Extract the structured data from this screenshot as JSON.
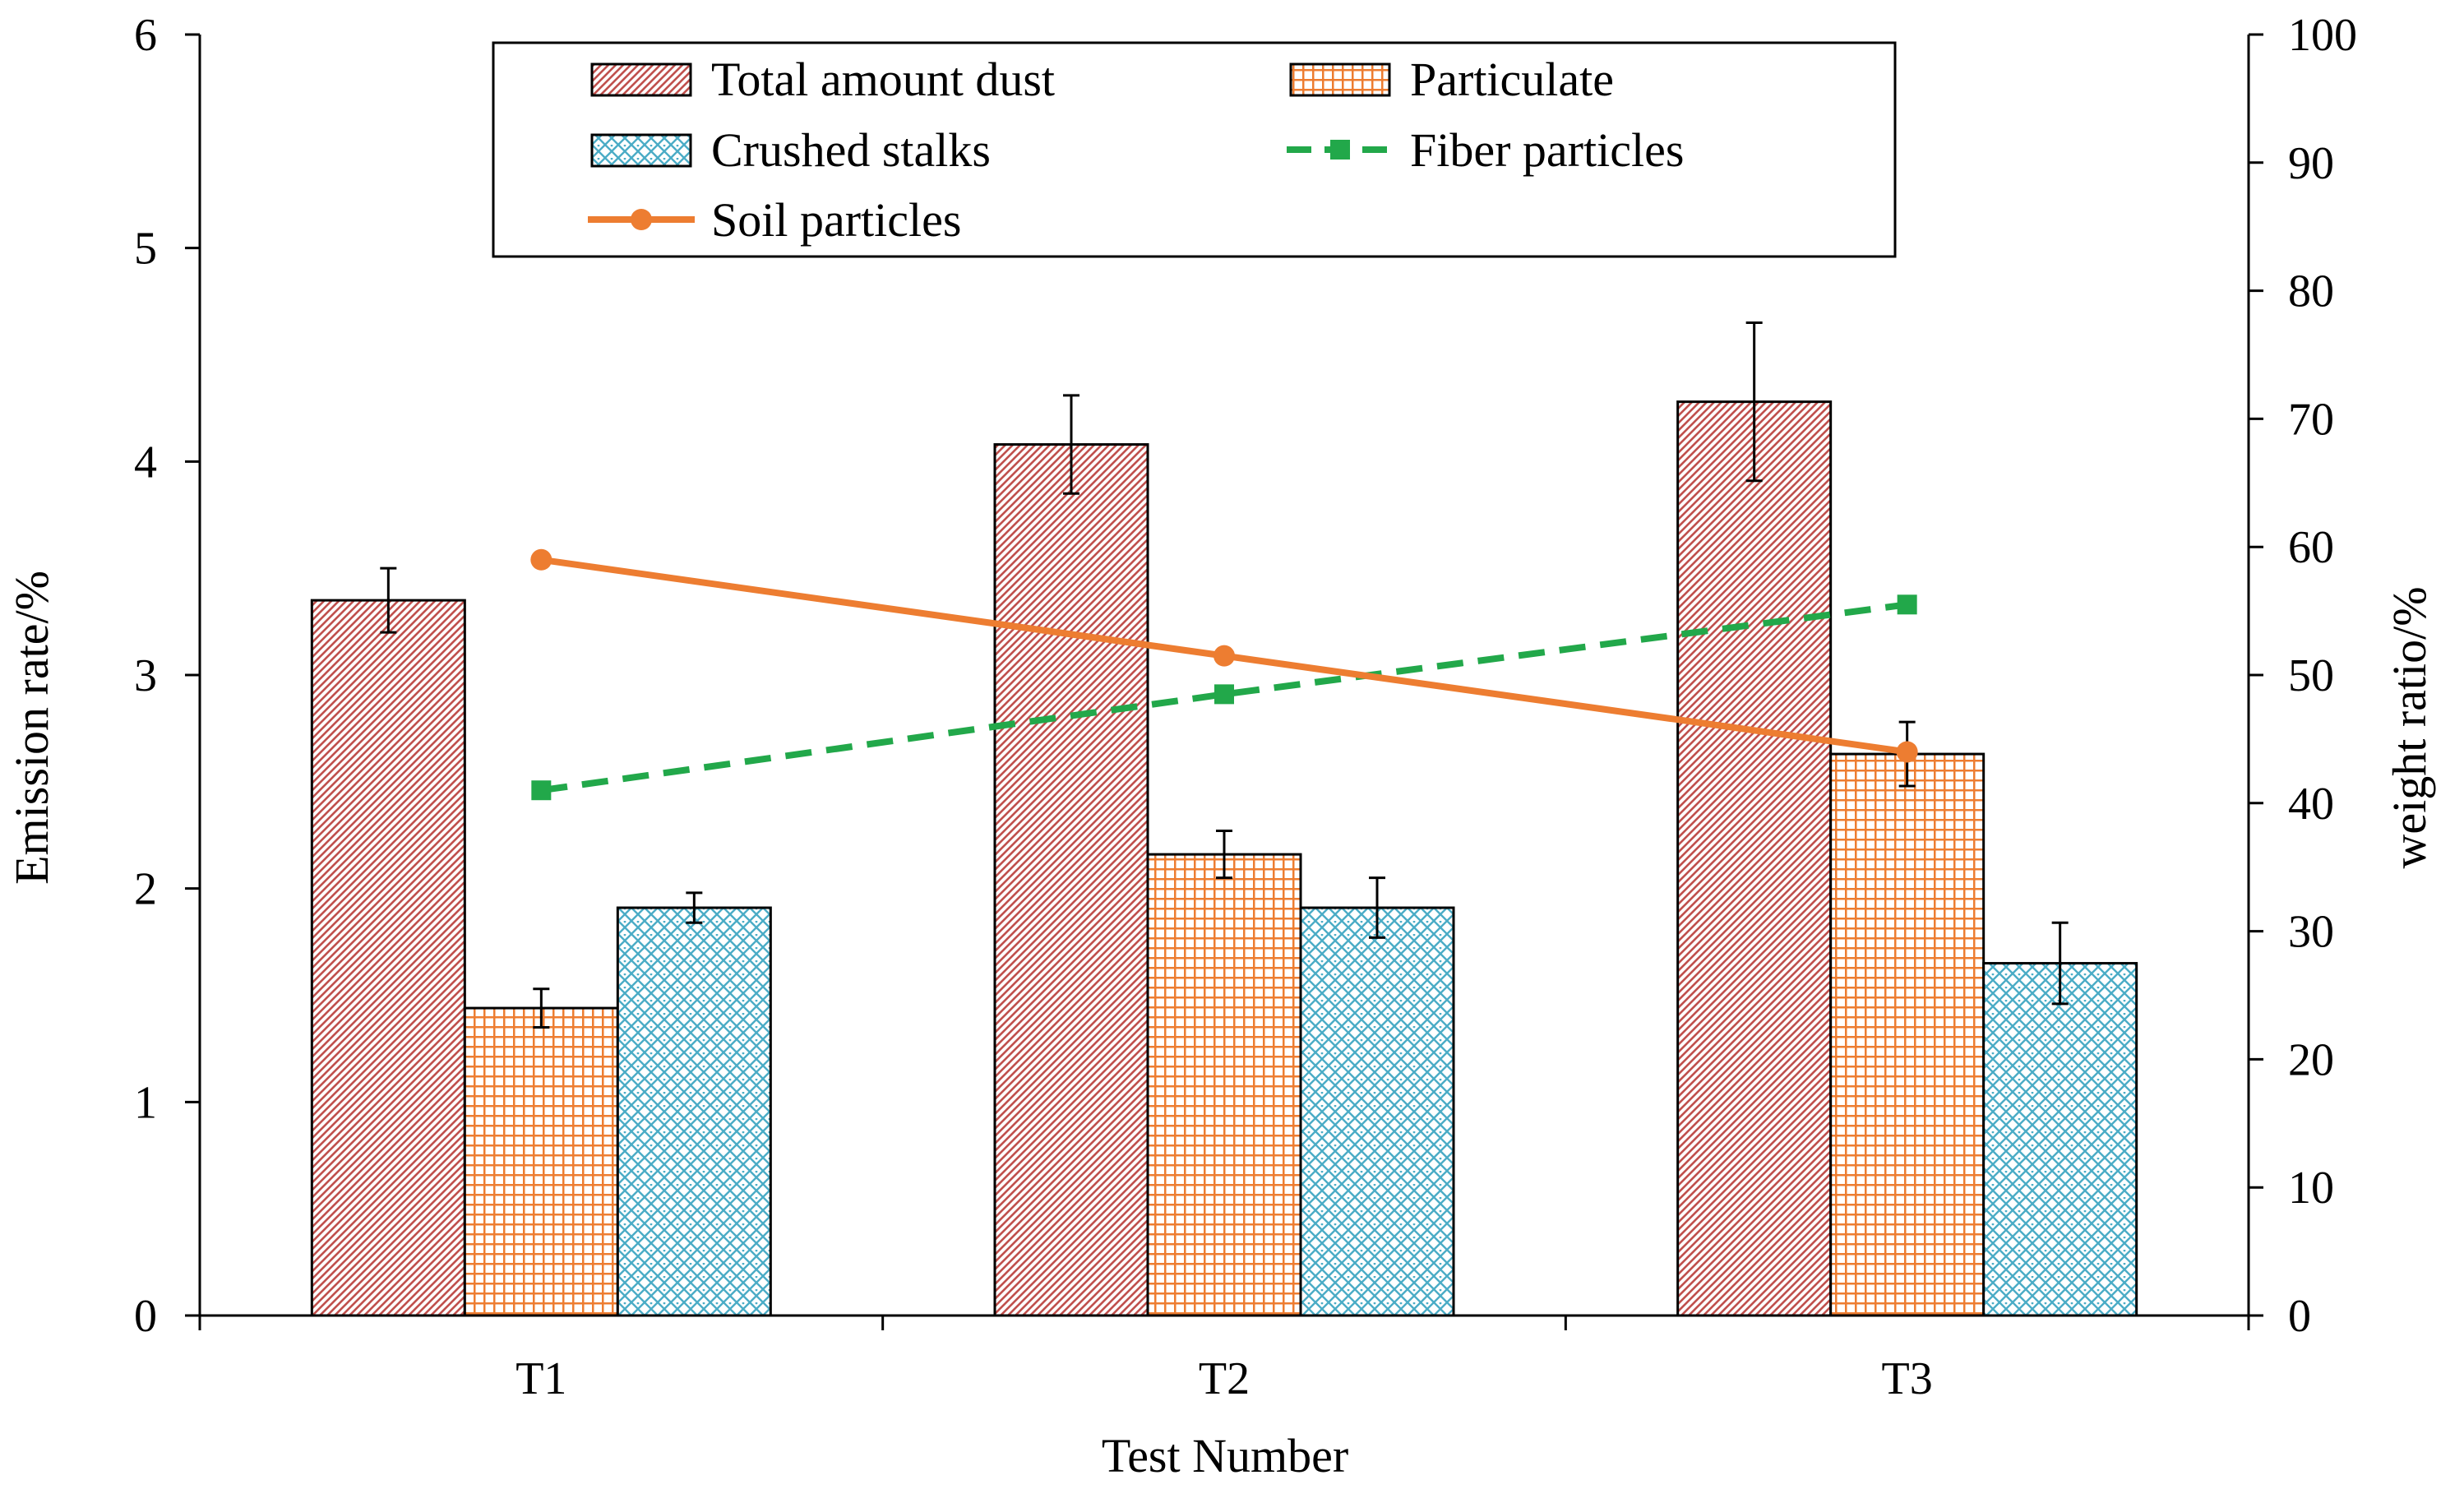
{
  "chart_data": {
    "type": "bar",
    "title": "",
    "xlabel": "Test Number",
    "ylabel": "Emission rate/%",
    "y2label": "weight ratio/%",
    "categories": [
      "T1",
      "T2",
      "T3"
    ],
    "ylim": [
      0,
      6
    ],
    "yticks": [
      0,
      1,
      2,
      3,
      4,
      5,
      6
    ],
    "y2lim": [
      0,
      100
    ],
    "y2ticks": [
      0,
      10,
      20,
      30,
      40,
      50,
      60,
      70,
      80,
      90,
      100
    ],
    "grid": false,
    "legend_position": "top-center",
    "bar_series": [
      {
        "name": "Total amount dust",
        "values": [
          3.35,
          4.08,
          4.28
        ],
        "errors": [
          0.15,
          0.23,
          0.37
        ],
        "color": "#c0504d",
        "pattern": "diagonal-hatch"
      },
      {
        "name": "Particulate",
        "values": [
          1.44,
          2.16,
          2.63
        ],
        "errors": [
          0.09,
          0.11,
          0.15
        ],
        "color": "#ed7d31",
        "pattern": "grid"
      },
      {
        "name": "Crushed stalks",
        "values": [
          1.91,
          1.91,
          1.65
        ],
        "errors": [
          0.07,
          0.14,
          0.19
        ],
        "color": "#4bacc6",
        "pattern": "diamond-lattice"
      }
    ],
    "line_series": [
      {
        "name": "Fiber particles",
        "axis": "right",
        "values": [
          41,
          48.5,
          55.5
        ],
        "color": "#22a84a",
        "style": "dashed",
        "marker": "square"
      },
      {
        "name": "Soil particles",
        "axis": "right",
        "values": [
          59,
          51.5,
          44
        ],
        "color": "#ed7d31",
        "style": "solid",
        "marker": "circle"
      }
    ],
    "legend_order": [
      "Total amount dust",
      "Particulate",
      "Crushed stalks",
      "Fiber particles",
      "Soil particles"
    ]
  }
}
